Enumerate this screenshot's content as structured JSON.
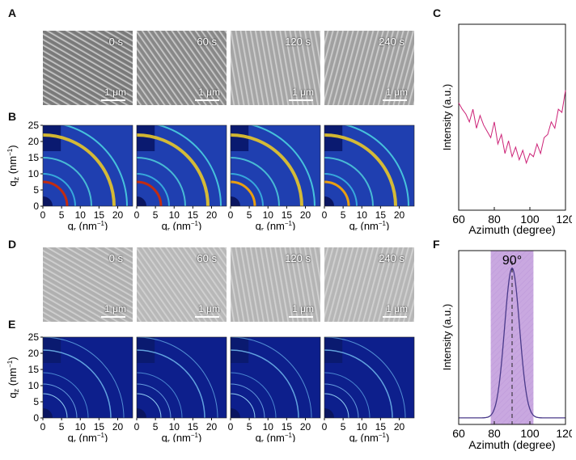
{
  "panel_labels": {
    "a": "A",
    "b": "B",
    "c": "C",
    "d": "D",
    "e": "E",
    "f": "F"
  },
  "sem_top": {
    "times": [
      "0 s",
      "60 s",
      "120 s",
      "240 s"
    ],
    "scale_bar": "1 μm",
    "colors": [
      "#7a7a7a",
      "#888888",
      "#a5a5a5",
      "#a0a0a0"
    ]
  },
  "sem_bottom": {
    "times": [
      "0 s",
      "60 s",
      "120 s",
      "240 s"
    ],
    "scale_bar": "1 μm",
    "colors": [
      "#b0b0b0",
      "#b8b8b8",
      "#b4b4b4",
      "#b6b6b6"
    ]
  },
  "giwaxs": {
    "y_ticks": [
      "0",
      "5",
      "10",
      "15",
      "20",
      "25"
    ],
    "x_ticks": [
      "0",
      "5",
      "10",
      "15",
      "20"
    ],
    "y_label": "q",
    "y_label_sub": "z",
    "y_label_unit": " (nm",
    "y_label_exp": "−1",
    "y_label_close": ")",
    "x_label": "q",
    "x_label_sub": "r",
    "x_label_unit": " (nm",
    "x_label_exp": "−1",
    "x_label_close": ")"
  },
  "chart_c": {
    "type": "line",
    "xlabel": "Azimuth (degree)",
    "ylabel": "Intensity (a.u.)",
    "x_ticks": [
      "60",
      "80",
      "100",
      "120"
    ],
    "xlim": [
      60,
      120
    ],
    "color": "#cc2277"
  },
  "chart_f": {
    "type": "line",
    "xlabel": "Azimuth (degree)",
    "ylabel": "Intensity (a.u.)",
    "x_ticks": [
      "60",
      "80",
      "100",
      "120"
    ],
    "xlim": [
      60,
      120
    ],
    "peak_label": "90°",
    "peak_center": 90,
    "band": [
      78,
      102
    ],
    "color": "#4a3a8a",
    "band_color": "#c9a8e0"
  },
  "chart_data": [
    {
      "type": "line",
      "title": "C",
      "xlabel": "Azimuth (degree)",
      "ylabel": "Intensity (a.u.)",
      "xlim": [
        60,
        120
      ],
      "x": [
        60,
        62,
        64,
        66,
        68,
        70,
        72,
        74,
        76,
        78,
        80,
        82,
        84,
        86,
        88,
        90,
        92,
        94,
        96,
        98,
        100,
        102,
        104,
        106,
        108,
        110,
        112,
        114,
        116,
        118,
        120
      ],
      "values": [
        0.62,
        0.58,
        0.55,
        0.5,
        0.58,
        0.46,
        0.54,
        0.48,
        0.44,
        0.4,
        0.5,
        0.36,
        0.42,
        0.3,
        0.38,
        0.28,
        0.34,
        0.26,
        0.32,
        0.24,
        0.3,
        0.28,
        0.36,
        0.3,
        0.4,
        0.42,
        0.5,
        0.46,
        0.58,
        0.56,
        0.7
      ]
    },
    {
      "type": "line",
      "title": "F",
      "xlabel": "Azimuth (degree)",
      "ylabel": "Intensity (a.u.)",
      "xlim": [
        60,
        120
      ],
      "x": [
        60,
        70,
        76,
        80,
        84,
        87,
        90,
        93,
        96,
        100,
        104,
        110,
        120
      ],
      "values": [
        0.02,
        0.02,
        0.04,
        0.18,
        0.6,
        0.92,
        1.0,
        0.92,
        0.6,
        0.18,
        0.04,
        0.02,
        0.02
      ]
    }
  ]
}
